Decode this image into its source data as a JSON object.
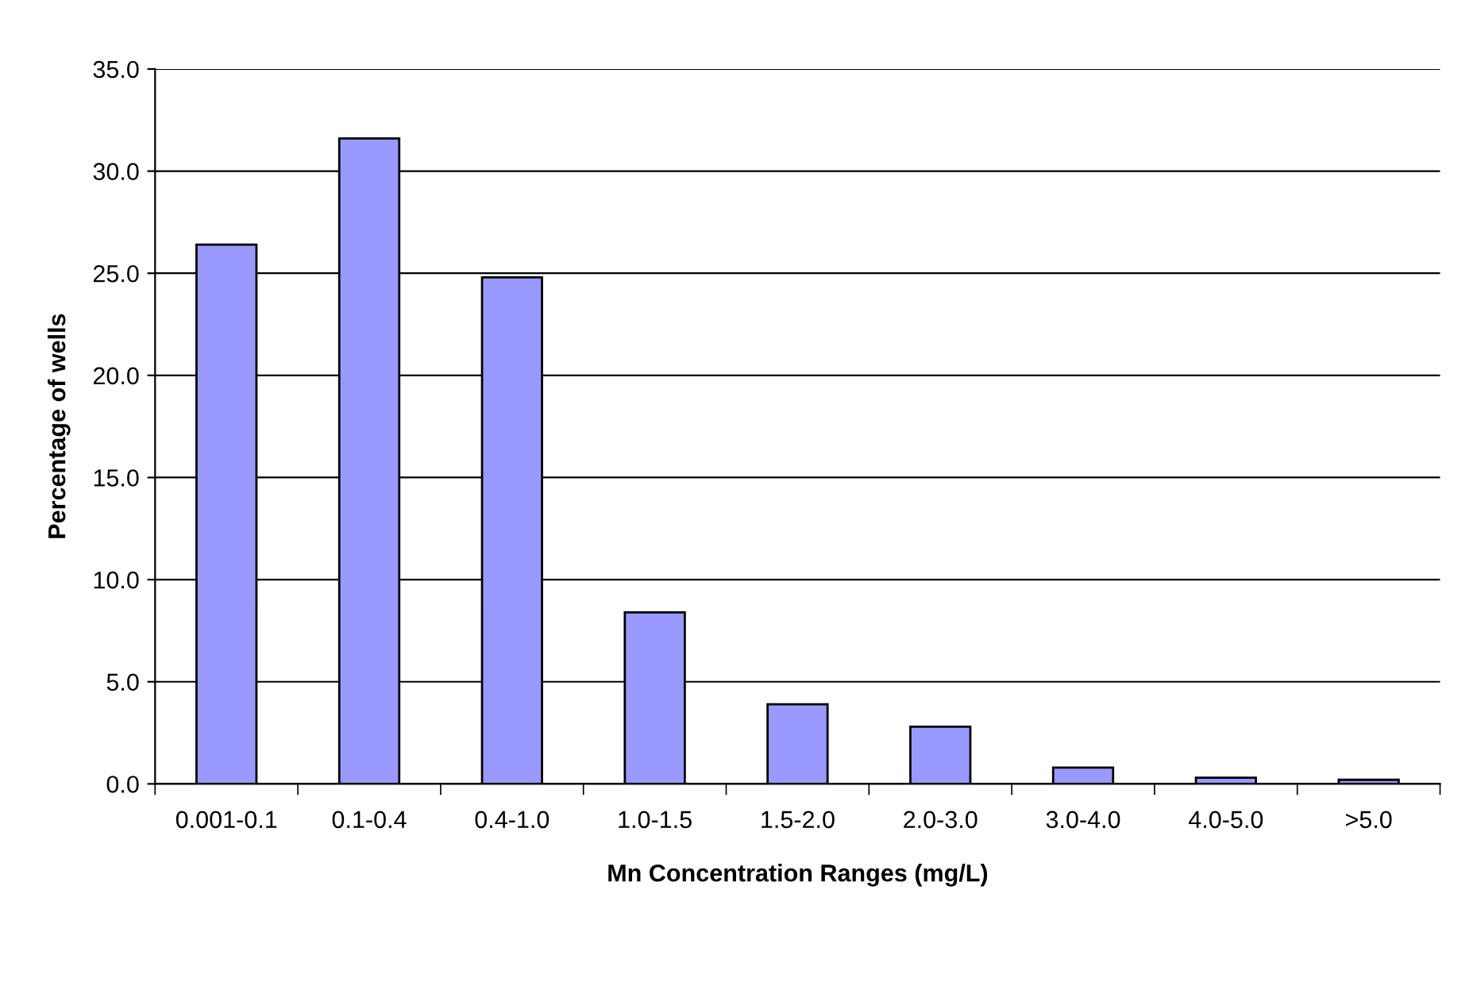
{
  "chart_data": {
    "type": "bar",
    "xlabel": "Mn Concentration Ranges (mg/L)",
    "ylabel": "Percentage of wells",
    "categories": [
      "0.001-0.1",
      "0.1-0.4",
      "0.4-1.0",
      "1.0-1.5",
      "1.5-2.0",
      "2.0-3.0",
      "3.0-4.0",
      "4.0-5.0",
      ">5.0"
    ],
    "values": [
      26.4,
      31.6,
      24.8,
      8.4,
      3.9,
      2.8,
      0.8,
      0.3,
      0.2
    ],
    "color": "#9999ff",
    "ylim": [
      0,
      35
    ],
    "yticks": [
      {
        "value": 0,
        "label": "0.0"
      },
      {
        "value": 5,
        "label": "5.0"
      },
      {
        "value": 10,
        "label": "10.0"
      },
      {
        "value": 15,
        "label": "15.0"
      },
      {
        "value": 20,
        "label": "20.0"
      },
      {
        "value": 25,
        "label": "25.0"
      },
      {
        "value": 30,
        "label": "30.0"
      },
      {
        "value": 35,
        "label": "35.0"
      }
    ],
    "grid": "y",
    "legend": false
  }
}
